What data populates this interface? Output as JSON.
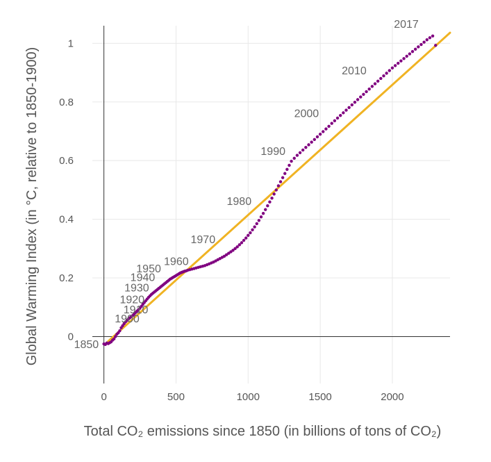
{
  "chart_data": {
    "type": "scatter",
    "xlabel": "Total CO₂ emissions since 1850 (in billions of tons of CO₂)",
    "ylabel": "Global Warming Index (in °C, relative to 1850-1900)",
    "xlim": [
      -80,
      2400
    ],
    "ylim": [
      -0.16,
      1.06
    ],
    "x_ticks": [
      0,
      500,
      1000,
      1500,
      2000
    ],
    "x_tick_labels": [
      "0",
      "500",
      "1000",
      "1500",
      "2000"
    ],
    "y_ticks": [
      0,
      0.2,
      0.4,
      0.6,
      0.8,
      1
    ],
    "y_tick_labels": [
      "0",
      "0.2",
      "0.4",
      "0.6",
      "0.8",
      "1"
    ],
    "grid": true,
    "colors": {
      "observed": "#800080",
      "trend": "#f0b323",
      "axis": "#333333",
      "grid": "#e8e8e8"
    },
    "series": [
      {
        "style": "dotted-markers",
        "points": [
          [
            0,
            -0.025
          ],
          [
            10,
            -0.027
          ],
          [
            20,
            -0.022
          ],
          [
            30,
            -0.024
          ],
          [
            40,
            -0.021
          ],
          [
            50,
            -0.018
          ],
          [
            60,
            -0.012
          ],
          [
            70,
            -0.008
          ],
          [
            80,
            0.0
          ],
          [
            90,
            0.008
          ],
          [
            100,
            0.013
          ],
          [
            110,
            0.02
          ],
          [
            120,
            0.03
          ],
          [
            130,
            0.037
          ],
          [
            140,
            0.044
          ],
          [
            150,
            0.05
          ],
          [
            160,
            0.055
          ],
          [
            170,
            0.06
          ],
          [
            180,
            0.064
          ],
          [
            190,
            0.068
          ],
          [
            200,
            0.072
          ],
          [
            210,
            0.077
          ],
          [
            220,
            0.082
          ],
          [
            230,
            0.087
          ],
          [
            240,
            0.092
          ],
          [
            250,
            0.097
          ],
          [
            260,
            0.103
          ],
          [
            270,
            0.11
          ],
          [
            280,
            0.116
          ],
          [
            290,
            0.122
          ],
          [
            300,
            0.128
          ],
          [
            310,
            0.134
          ],
          [
            320,
            0.139
          ],
          [
            330,
            0.144
          ],
          [
            340,
            0.148
          ],
          [
            350,
            0.152
          ],
          [
            360,
            0.156
          ],
          [
            370,
            0.16
          ],
          [
            380,
            0.164
          ],
          [
            390,
            0.168
          ],
          [
            400,
            0.172
          ],
          [
            410,
            0.176
          ],
          [
            420,
            0.18
          ],
          [
            430,
            0.184
          ],
          [
            440,
            0.188
          ],
          [
            450,
            0.192
          ],
          [
            460,
            0.196
          ],
          [
            470,
            0.199
          ],
          [
            480,
            0.202
          ],
          [
            490,
            0.205
          ],
          [
            500,
            0.208
          ],
          [
            510,
            0.211
          ],
          [
            520,
            0.214
          ],
          [
            530,
            0.217
          ],
          [
            540,
            0.219
          ],
          [
            550,
            0.221
          ],
          [
            560,
            0.223
          ],
          [
            570,
            0.224
          ],
          [
            580,
            0.226
          ],
          [
            595,
            0.228
          ],
          [
            610,
            0.23
          ],
          [
            625,
            0.232
          ],
          [
            640,
            0.234
          ],
          [
            655,
            0.236
          ],
          [
            670,
            0.238
          ],
          [
            685,
            0.24
          ],
          [
            700,
            0.242
          ],
          [
            715,
            0.245
          ],
          [
            730,
            0.248
          ],
          [
            745,
            0.251
          ],
          [
            760,
            0.254
          ],
          [
            775,
            0.258
          ],
          [
            790,
            0.262
          ],
          [
            805,
            0.266
          ],
          [
            820,
            0.27
          ],
          [
            835,
            0.274
          ],
          [
            850,
            0.279
          ],
          [
            865,
            0.284
          ],
          [
            880,
            0.289
          ],
          [
            895,
            0.294
          ],
          [
            910,
            0.3
          ],
          [
            925,
            0.306
          ],
          [
            940,
            0.313
          ],
          [
            955,
            0.32
          ],
          [
            970,
            0.328
          ],
          [
            985,
            0.336
          ],
          [
            1000,
            0.345
          ],
          [
            1015,
            0.354
          ],
          [
            1030,
            0.364
          ],
          [
            1045,
            0.374
          ],
          [
            1060,
            0.385
          ],
          [
            1075,
            0.396
          ],
          [
            1090,
            0.408
          ],
          [
            1105,
            0.42
          ],
          [
            1120,
            0.433
          ],
          [
            1135,
            0.446
          ],
          [
            1150,
            0.459
          ],
          [
            1165,
            0.472
          ],
          [
            1180,
            0.486
          ],
          [
            1195,
            0.5
          ],
          [
            1210,
            0.514
          ],
          [
            1225,
            0.528
          ],
          [
            1240,
            0.542
          ],
          [
            1255,
            0.556
          ],
          [
            1270,
            0.57
          ],
          [
            1285,
            0.584
          ],
          [
            1300,
            0.598
          ],
          [
            1320,
            0.608
          ],
          [
            1340,
            0.618
          ],
          [
            1360,
            0.627
          ],
          [
            1380,
            0.636
          ],
          [
            1400,
            0.645
          ],
          [
            1420,
            0.654
          ],
          [
            1440,
            0.663
          ],
          [
            1460,
            0.672
          ],
          [
            1480,
            0.681
          ],
          [
            1500,
            0.69
          ],
          [
            1520,
            0.699
          ],
          [
            1540,
            0.708
          ],
          [
            1560,
            0.717
          ],
          [
            1580,
            0.727
          ],
          [
            1600,
            0.736
          ],
          [
            1620,
            0.745
          ],
          [
            1640,
            0.754
          ],
          [
            1660,
            0.763
          ],
          [
            1680,
            0.772
          ],
          [
            1700,
            0.781
          ],
          [
            1720,
            0.79
          ],
          [
            1740,
            0.799
          ],
          [
            1760,
            0.808
          ],
          [
            1780,
            0.817
          ],
          [
            1800,
            0.826
          ],
          [
            1820,
            0.835
          ],
          [
            1840,
            0.844
          ],
          [
            1860,
            0.853
          ],
          [
            1880,
            0.862
          ],
          [
            1900,
            0.871
          ],
          [
            1920,
            0.88
          ],
          [
            1940,
            0.889
          ],
          [
            1960,
            0.898
          ],
          [
            1980,
            0.907
          ],
          [
            2000,
            0.916
          ],
          [
            2020,
            0.924
          ],
          [
            2040,
            0.932
          ],
          [
            2060,
            0.94
          ],
          [
            2080,
            0.948
          ],
          [
            2100,
            0.956
          ],
          [
            2120,
            0.964
          ],
          [
            2140,
            0.972
          ],
          [
            2160,
            0.98
          ],
          [
            2180,
            0.988
          ],
          [
            2200,
            0.996
          ],
          [
            2220,
            1.004
          ],
          [
            2240,
            1.012
          ],
          [
            2260,
            1.019
          ],
          [
            2280,
            1.025
          ],
          [
            2300,
            0.993
          ]
        ]
      },
      {
        "style": "line",
        "points": [
          [
            30,
            -0.016
          ],
          [
            2400,
            1.036
          ]
        ]
      }
    ],
    "annotations": [
      {
        "text": "1850",
        "x": 0,
        "y": -0.025
      },
      {
        "text": "1900",
        "x": 80,
        "y": 0.03
      },
      {
        "text": "1910",
        "x": 150,
        "y": 0.06
      },
      {
        "text": "1920",
        "x": 240,
        "y": 0.095
      },
      {
        "text": "1930",
        "x": 320,
        "y": 0.135
      },
      {
        "text": "1940",
        "x": 400,
        "y": 0.17
      },
      {
        "text": "1950",
        "x": 480,
        "y": 0.2
      },
      {
        "text": "1960",
        "x": 575,
        "y": 0.225
      },
      {
        "text": "1970",
        "x": 770,
        "y": 0.3
      },
      {
        "text": "1980",
        "x": 1030,
        "y": 0.43
      },
      {
        "text": "1990",
        "x": 1280,
        "y": 0.6
      },
      {
        "text": "2000",
        "x": 1560,
        "y": 0.73
      },
      {
        "text": "2010",
        "x": 1900,
        "y": 0.87
      },
      {
        "text": "2017",
        "x": 2300,
        "y": 1.02
      }
    ]
  }
}
